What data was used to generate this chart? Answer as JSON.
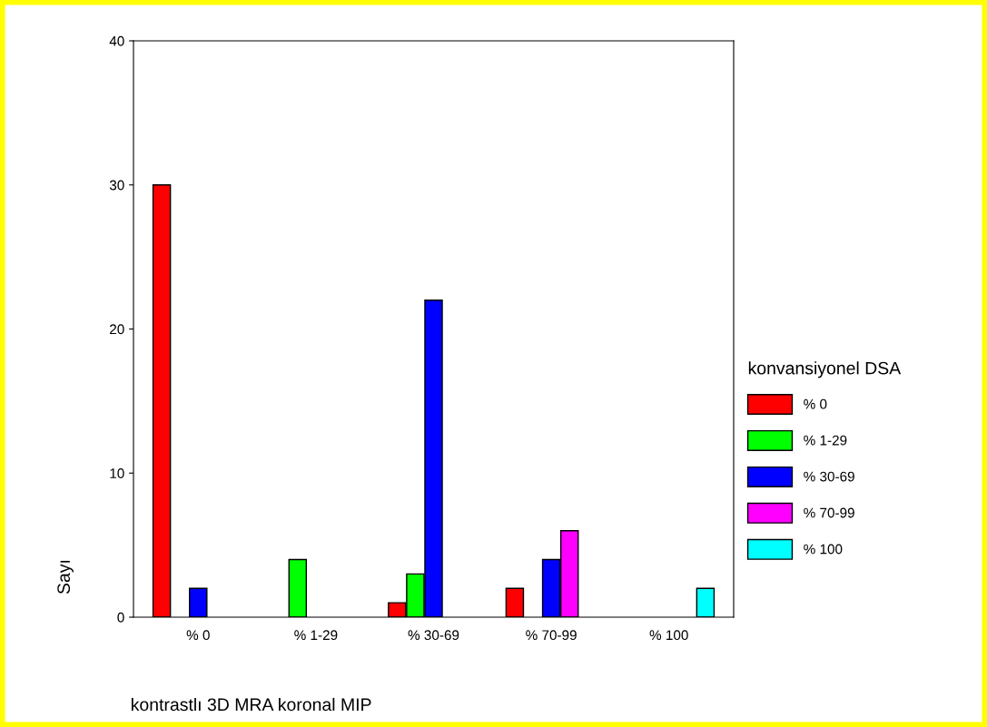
{
  "chart_data": {
    "type": "bar",
    "xlabel": "kontrastlı 3D MRA koronal MIP",
    "ylabel": "Sayı",
    "legend_title": "konvansiyonel DSA",
    "categories": [
      "% 0",
      "% 1-29",
      "% 30-69",
      "% 70-99",
      "% 100"
    ],
    "series": [
      {
        "name": "% 0",
        "color": "#ff0000",
        "values": [
          30,
          null,
          1,
          2,
          null
        ]
      },
      {
        "name": "% 1-29",
        "color": "#00ff00",
        "values": [
          null,
          4,
          3,
          null,
          null
        ]
      },
      {
        "name": "% 30-69",
        "color": "#0000ff",
        "values": [
          2,
          null,
          22,
          4,
          null
        ]
      },
      {
        "name": "% 70-99",
        "color": "#ff00ff",
        "values": [
          null,
          null,
          null,
          6,
          null
        ]
      },
      {
        "name": "% 100",
        "color": "#00ffff",
        "values": [
          null,
          null,
          null,
          null,
          2
        ]
      }
    ],
    "ylim": [
      0,
      40
    ],
    "yticks": [
      0,
      10,
      20,
      30,
      40
    ],
    "grid": false,
    "legend": "right"
  }
}
